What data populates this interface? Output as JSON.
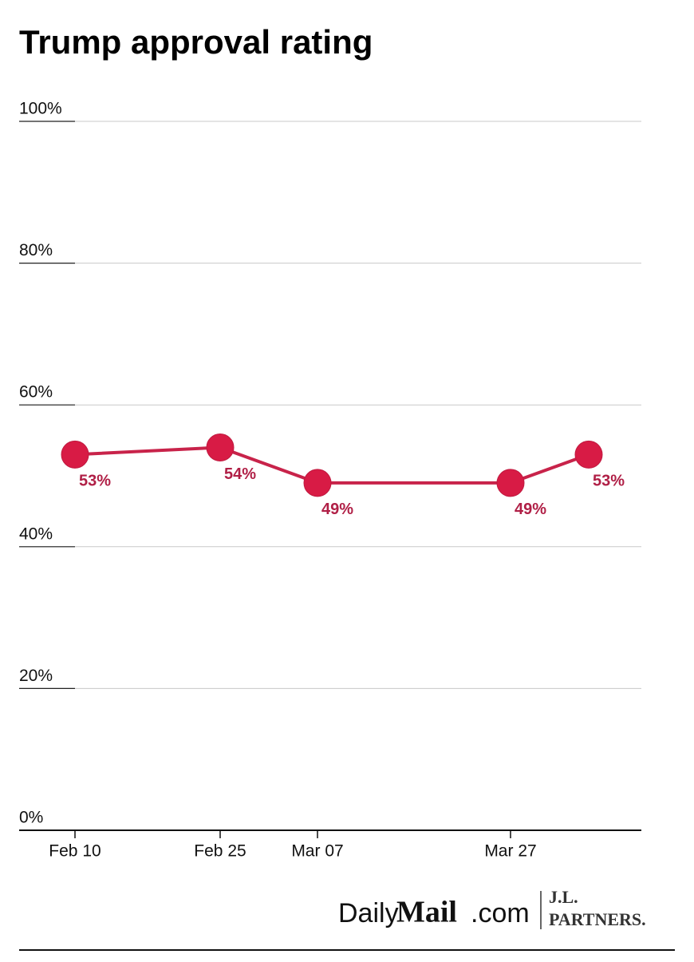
{
  "chart_data": {
    "type": "line",
    "title": "Trump approval rating",
    "categories": [
      "Feb 10",
      "Feb 25",
      "Mar 07",
      "Mar 27",
      null
    ],
    "series": [
      {
        "name": "Approval",
        "color": "#d81b45",
        "values": [
          53,
          54,
          49,
          49,
          53
        ],
        "value_labels": [
          "53%",
          "54%",
          "49%",
          "49%",
          "53%"
        ]
      }
    ],
    "ylim": [
      0,
      100
    ],
    "yticks": [
      {
        "value": 0,
        "label": "0%"
      },
      {
        "value": 20,
        "label": "20%"
      },
      {
        "value": 40,
        "label": "40%"
      },
      {
        "value": 60,
        "label": "60%"
      },
      {
        "value": 80,
        "label": "80%"
      },
      {
        "value": 100,
        "label": "100%"
      }
    ],
    "grid": true,
    "logos": {
      "daily": "Daily",
      "mail": "Mail",
      "dotcom": ".com",
      "jl": "J.L.",
      "partners": "PARTNERS."
    }
  }
}
